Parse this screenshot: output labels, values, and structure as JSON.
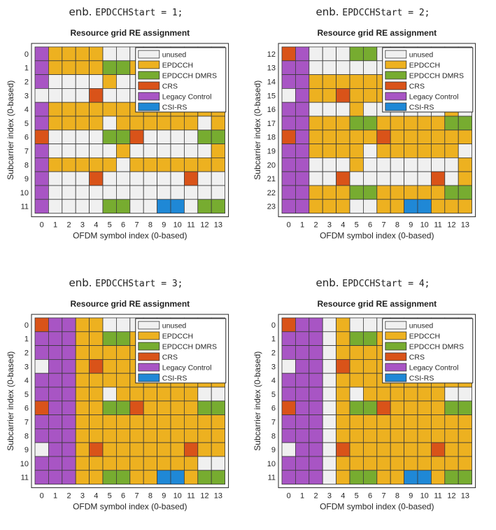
{
  "chart_data": [
    {
      "type": "heatmap",
      "caption_prefix": "enb.",
      "caption_code": "EPDCCHStart = 1;",
      "title": "Resource grid RE assignment",
      "xlabel": "OFDM symbol index (0-based)",
      "ylabel": "Subcarrier index (0-based)",
      "x_ticks": [
        "0",
        "1",
        "2",
        "3",
        "4",
        "5",
        "6",
        "7",
        "8",
        "9",
        "10",
        "11",
        "12",
        "13"
      ],
      "y_ticks": [
        "0",
        "1",
        "2",
        "3",
        "4",
        "5",
        "6",
        "7",
        "8",
        "9",
        "10",
        "11"
      ],
      "legend_position": "top-right",
      "grid": [
        [
          4,
          1,
          1,
          1,
          1,
          0,
          0,
          0,
          0,
          0,
          0,
          0,
          0,
          0
        ],
        [
          4,
          1,
          1,
          1,
          1,
          2,
          2,
          1,
          1,
          1,
          1,
          1,
          1,
          1
        ],
        [
          4,
          0,
          0,
          0,
          0,
          1,
          0,
          0,
          0,
          0,
          0,
          0,
          0,
          0
        ],
        [
          0,
          0,
          0,
          0,
          3,
          0,
          0,
          0,
          0,
          0,
          0,
          0,
          0,
          0
        ],
        [
          4,
          1,
          1,
          1,
          1,
          1,
          1,
          1,
          1,
          1,
          1,
          1,
          1,
          1
        ],
        [
          4,
          1,
          1,
          1,
          1,
          0,
          1,
          1,
          1,
          1,
          1,
          1,
          0,
          1
        ],
        [
          3,
          0,
          0,
          0,
          0,
          2,
          2,
          3,
          0,
          0,
          0,
          0,
          2,
          2
        ],
        [
          4,
          0,
          0,
          0,
          0,
          0,
          1,
          0,
          0,
          0,
          0,
          0,
          0,
          1
        ],
        [
          4,
          1,
          1,
          1,
          1,
          1,
          0,
          1,
          1,
          1,
          1,
          1,
          1,
          1
        ],
        [
          4,
          0,
          0,
          0,
          3,
          0,
          0,
          0,
          0,
          0,
          0,
          3,
          0,
          0
        ],
        [
          4,
          0,
          0,
          0,
          0,
          0,
          0,
          0,
          0,
          0,
          0,
          0,
          0,
          0
        ],
        [
          4,
          0,
          0,
          0,
          0,
          2,
          2,
          0,
          0,
          5,
          5,
          0,
          2,
          2
        ]
      ]
    },
    {
      "type": "heatmap",
      "caption_prefix": "enb.",
      "caption_code": "EPDCCHStart = 2;",
      "title": "Resource grid RE assignment",
      "xlabel": "OFDM symbol index (0-based)",
      "ylabel": "Subcarrier index (0-based)",
      "x_ticks": [
        "0",
        "1",
        "2",
        "3",
        "4",
        "5",
        "6",
        "7",
        "8",
        "9",
        "10",
        "11",
        "12",
        "13"
      ],
      "y_ticks": [
        "12",
        "13",
        "14",
        "15",
        "16",
        "17",
        "18",
        "19",
        "20",
        "21",
        "22",
        "23"
      ],
      "legend_position": "top-right",
      "grid": [
        [
          3,
          4,
          0,
          0,
          0,
          2,
          2,
          0,
          0,
          0,
          0,
          0,
          0,
          0
        ],
        [
          4,
          4,
          0,
          0,
          0,
          0,
          0,
          0,
          0,
          0,
          0,
          0,
          0,
          0
        ],
        [
          4,
          4,
          1,
          1,
          1,
          1,
          1,
          1,
          1,
          1,
          1,
          1,
          1,
          1
        ],
        [
          0,
          4,
          1,
          1,
          3,
          1,
          1,
          1,
          1,
          1,
          1,
          1,
          1,
          1
        ],
        [
          4,
          4,
          0,
          0,
          0,
          1,
          0,
          0,
          0,
          0,
          0,
          0,
          1,
          0
        ],
        [
          4,
          4,
          1,
          1,
          1,
          2,
          2,
          1,
          1,
          1,
          1,
          1,
          2,
          2
        ],
        [
          3,
          4,
          1,
          1,
          1,
          1,
          1,
          3,
          1,
          1,
          1,
          1,
          1,
          1
        ],
        [
          4,
          4,
          1,
          1,
          1,
          1,
          0,
          1,
          1,
          1,
          1,
          1,
          1,
          0
        ],
        [
          4,
          4,
          0,
          0,
          0,
          1,
          0,
          0,
          0,
          0,
          0,
          0,
          0,
          1
        ],
        [
          4,
          4,
          0,
          0,
          3,
          0,
          0,
          0,
          0,
          0,
          0,
          3,
          0,
          1
        ],
        [
          4,
          4,
          1,
          1,
          1,
          2,
          2,
          1,
          1,
          1,
          1,
          1,
          2,
          2
        ],
        [
          4,
          4,
          1,
          1,
          1,
          0,
          0,
          1,
          1,
          5,
          5,
          1,
          1,
          1
        ]
      ]
    },
    {
      "type": "heatmap",
      "caption_prefix": "enb.",
      "caption_code": "EPDCCHStart = 3;",
      "title": "Resource grid RE assignment",
      "xlabel": "OFDM symbol index (0-based)",
      "ylabel": "Subcarrier index (0-based)",
      "x_ticks": [
        "0",
        "1",
        "2",
        "3",
        "4",
        "5",
        "6",
        "7",
        "8",
        "9",
        "10",
        "11",
        "12",
        "13"
      ],
      "y_ticks": [
        "0",
        "1",
        "2",
        "3",
        "4",
        "5",
        "6",
        "7",
        "8",
        "9",
        "10",
        "11"
      ],
      "legend_position": "top-right",
      "grid": [
        [
          3,
          4,
          4,
          1,
          1,
          0,
          0,
          0,
          0,
          0,
          0,
          0,
          0,
          0
        ],
        [
          4,
          4,
          4,
          1,
          1,
          2,
          2,
          1,
          1,
          1,
          1,
          1,
          1,
          1
        ],
        [
          4,
          4,
          4,
          1,
          1,
          1,
          1,
          1,
          1,
          1,
          1,
          1,
          1,
          1
        ],
        [
          0,
          4,
          4,
          1,
          3,
          1,
          1,
          1,
          1,
          1,
          1,
          1,
          1,
          1
        ],
        [
          4,
          4,
          4,
          1,
          1,
          1,
          1,
          1,
          1,
          1,
          1,
          1,
          1,
          1
        ],
        [
          4,
          4,
          4,
          1,
          1,
          0,
          1,
          1,
          1,
          1,
          1,
          1,
          0,
          0
        ],
        [
          3,
          4,
          4,
          1,
          1,
          2,
          2,
          3,
          1,
          1,
          1,
          1,
          2,
          2
        ],
        [
          4,
          4,
          4,
          1,
          1,
          1,
          1,
          1,
          1,
          1,
          1,
          1,
          1,
          1
        ],
        [
          4,
          4,
          4,
          1,
          1,
          1,
          1,
          1,
          1,
          1,
          1,
          1,
          1,
          1
        ],
        [
          0,
          4,
          4,
          1,
          3,
          1,
          1,
          1,
          1,
          1,
          1,
          3,
          1,
          1
        ],
        [
          4,
          4,
          4,
          1,
          1,
          1,
          1,
          1,
          1,
          1,
          1,
          1,
          0,
          0
        ],
        [
          4,
          4,
          4,
          1,
          1,
          2,
          2,
          1,
          1,
          5,
          5,
          1,
          2,
          2
        ]
      ]
    },
    {
      "type": "heatmap",
      "caption_prefix": "enb.",
      "caption_code": "EPDCCHStart = 4;",
      "title": "Resource grid RE assignment",
      "xlabel": "OFDM symbol index (0-based)",
      "ylabel": "Subcarrier index (0-based)",
      "x_ticks": [
        "0",
        "1",
        "2",
        "3",
        "4",
        "5",
        "6",
        "7",
        "8",
        "9",
        "10",
        "11",
        "12",
        "13"
      ],
      "y_ticks": [
        "0",
        "1",
        "2",
        "3",
        "4",
        "5",
        "6",
        "7",
        "8",
        "9",
        "10",
        "11"
      ],
      "legend_position": "top-right",
      "grid": [
        [
          3,
          4,
          4,
          0,
          1,
          0,
          0,
          0,
          0,
          0,
          0,
          0,
          0,
          0
        ],
        [
          4,
          4,
          4,
          0,
          1,
          2,
          2,
          1,
          1,
          1,
          1,
          1,
          1,
          1
        ],
        [
          4,
          4,
          4,
          0,
          1,
          1,
          1,
          1,
          1,
          1,
          1,
          1,
          1,
          1
        ],
        [
          0,
          4,
          4,
          0,
          3,
          1,
          1,
          1,
          1,
          1,
          1,
          1,
          1,
          1
        ],
        [
          4,
          4,
          4,
          0,
          1,
          1,
          1,
          1,
          1,
          1,
          1,
          1,
          1,
          1
        ],
        [
          4,
          4,
          4,
          0,
          1,
          0,
          1,
          1,
          1,
          1,
          1,
          1,
          0,
          0
        ],
        [
          3,
          4,
          4,
          0,
          1,
          2,
          2,
          3,
          1,
          1,
          1,
          1,
          2,
          2
        ],
        [
          4,
          4,
          4,
          0,
          1,
          1,
          1,
          1,
          1,
          1,
          1,
          1,
          1,
          1
        ],
        [
          4,
          4,
          4,
          0,
          1,
          1,
          1,
          1,
          1,
          1,
          1,
          1,
          1,
          1
        ],
        [
          0,
          4,
          4,
          0,
          3,
          1,
          1,
          1,
          1,
          1,
          1,
          3,
          1,
          1
        ],
        [
          4,
          4,
          4,
          0,
          1,
          1,
          1,
          1,
          1,
          1,
          1,
          1,
          1,
          1
        ],
        [
          4,
          4,
          4,
          0,
          1,
          2,
          2,
          1,
          1,
          5,
          5,
          1,
          2,
          2
        ]
      ]
    }
  ],
  "legend": [
    {
      "label": "unused",
      "color": "#f0f0f0"
    },
    {
      "label": "EPDCCH",
      "color": "#edb120"
    },
    {
      "label": "EPDCCH DMRS",
      "color": "#77ac30"
    },
    {
      "label": "CRS",
      "color": "#d95319"
    },
    {
      "label": "Legacy Control",
      "color": "#a855c4"
    },
    {
      "label": "CSI-RS",
      "color": "#1f88d6"
    }
  ]
}
